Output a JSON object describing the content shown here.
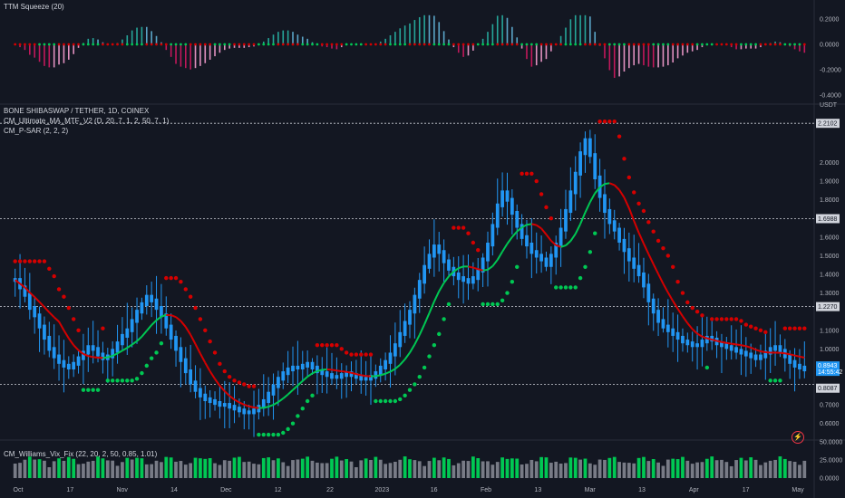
{
  "colors": {
    "background": "#131722",
    "grid": "#1e222d",
    "text": "#b2b5be",
    "candle_up": "#2196f3",
    "candle_down": "#2196f3",
    "sar_up": "#00c853",
    "sar_down": "#d50000",
    "ma_up": "#00c853",
    "ma_down": "#d50000",
    "squeeze_up": "#26a69a",
    "squeeze_up_light": "#5ba6c9",
    "squeeze_down": "#c2185b",
    "squeeze_down_light": "#e291c0",
    "vix_high": "#00c853",
    "vix_normal": "#787b86"
  },
  "panels": {
    "squeeze": {
      "label": "TTM Squeeze (20)",
      "axis_ticks": [
        "0.2000",
        "0.0000",
        "-0.2000",
        "-0.4000"
      ]
    },
    "price": {
      "title": "BONE SHIBASWAP / TETHER, 1D, COINEX",
      "indicator1": "CM_Ultimate_MA_MTF_V2 (D, 20, 7, 1, 2, 50, 7, 1)",
      "indicator2": "CM_P-SAR (2, 2, 2)",
      "unit": "USDT",
      "axis_ticks": [
        "2.0000",
        "1.9000",
        "1.8000",
        "1.6000",
        "1.5000",
        "1.4000",
        "1.3000",
        "1.1000",
        "1.0000",
        "0.9000",
        "0.8000",
        "0.7000",
        "0.6000"
      ],
      "marker_lines": [
        "2.2102",
        "1.6988",
        "1.2270"
      ],
      "last_price": "0.8943",
      "countdown": "14:55:42",
      "low_marker": "0.8087"
    },
    "vix": {
      "label": "CM_Williams_Vix_Fix (22, 20, 2, 50, 0.85, 1.01)",
      "axis_ticks": [
        "50.0000",
        "25.0000",
        "0.0000"
      ]
    }
  },
  "time_axis": [
    "Oct",
    "17",
    "Nov",
    "14",
    "Dec",
    "12",
    "22",
    "2023",
    "16",
    "Feb",
    "13",
    "Mar",
    "13",
    "Apr",
    "17",
    "May"
  ],
  "chart_data": {
    "type": "candlestick",
    "title": "BONE SHIBASWAP / TETHER, 1D, COINEX",
    "ylabel": "USDT",
    "ylim": [
      0.55,
      2.25
    ],
    "x": [
      "Oct",
      "17",
      "Nov",
      "14",
      "Dec",
      "12",
      "22",
      "2023",
      "16",
      "Feb",
      "13",
      "Mar",
      "13",
      "Apr",
      "17",
      "May"
    ],
    "close_series": [
      1.37,
      1.33,
      1.29,
      1.22,
      1.18,
      1.12,
      1.06,
      1.0,
      0.96,
      0.93,
      0.91,
      0.9,
      0.92,
      0.95,
      0.98,
      1.01,
      1.0,
      0.97,
      0.95,
      0.96,
      0.99,
      1.03,
      1.07,
      1.1,
      1.15,
      1.2,
      1.24,
      1.28,
      1.26,
      1.22,
      1.18,
      1.12,
      1.06,
      1.0,
      0.94,
      0.88,
      0.82,
      0.78,
      0.75,
      0.73,
      0.72,
      0.71,
      0.7,
      0.7,
      0.69,
      0.68,
      0.67,
      0.66,
      0.66,
      0.67,
      0.69,
      0.72,
      0.76,
      0.8,
      0.84,
      0.87,
      0.89,
      0.9,
      0.9,
      0.91,
      0.92,
      0.9,
      0.88,
      0.87,
      0.86,
      0.85,
      0.85,
      0.86,
      0.87,
      0.86,
      0.85,
      0.84,
      0.84,
      0.85,
      0.87,
      0.9,
      0.93,
      0.97,
      1.02,
      1.08,
      1.14,
      1.2,
      1.28,
      1.36,
      1.44,
      1.5,
      1.55,
      1.52,
      1.47,
      1.43,
      1.4,
      1.38,
      1.37,
      1.36,
      1.38,
      1.42,
      1.48,
      1.56,
      1.66,
      1.77,
      1.84,
      1.8,
      1.73,
      1.66,
      1.6,
      1.56,
      1.52,
      1.5,
      1.48,
      1.45,
      1.5,
      1.56,
      1.64,
      1.74,
      1.84,
      1.94,
      2.05,
      2.12,
      2.04,
      1.92,
      1.82,
      1.74,
      1.68,
      1.64,
      1.58,
      1.53,
      1.48,
      1.44,
      1.4,
      1.34,
      1.26,
      1.2,
      1.15,
      1.12,
      1.1,
      1.08,
      1.06,
      1.04,
      1.03,
      1.02,
      1.02,
      1.04,
      1.06,
      1.05,
      1.03,
      1.02,
      1.01,
      1.0,
      0.99,
      0.98,
      0.97,
      0.96,
      0.95,
      0.96,
      0.98,
      1.0,
      1.01,
      0.99,
      0.96,
      0.93,
      0.91,
      0.9,
      0.89
    ],
    "sar_down": {
      "start": [
        1.39,
        1.0,
        1.35,
        0.98,
        1.06,
        1.05,
        1.0,
        1.72,
        1.98,
        2.2,
        1.11,
        1.17
      ],
      "note": ""
    },
    "last_price": 0.8943,
    "horizontal_levels": [
      2.2102,
      1.6988,
      1.227,
      0.8087
    ]
  }
}
